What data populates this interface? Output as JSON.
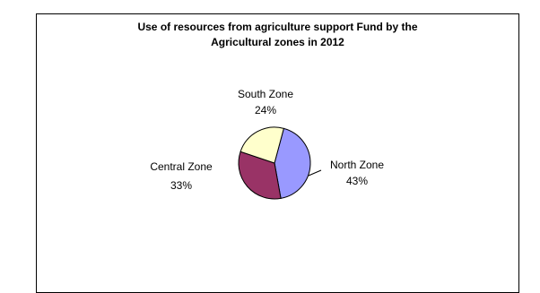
{
  "chart_data": {
    "type": "pie",
    "title_line1": "Use of resources from agriculture support Fund by the",
    "title_line2": "Agricultural zones in 2012",
    "slices": [
      {
        "name": "North Zone",
        "value": 43,
        "label": "43%",
        "color": "#9999ff"
      },
      {
        "name": "Central Zone",
        "value": 33,
        "label": "33%",
        "color": "#993366"
      },
      {
        "name": "South Zone",
        "value": 24,
        "label": "24%",
        "color": "#ffffcc"
      }
    ],
    "legend": "none"
  }
}
